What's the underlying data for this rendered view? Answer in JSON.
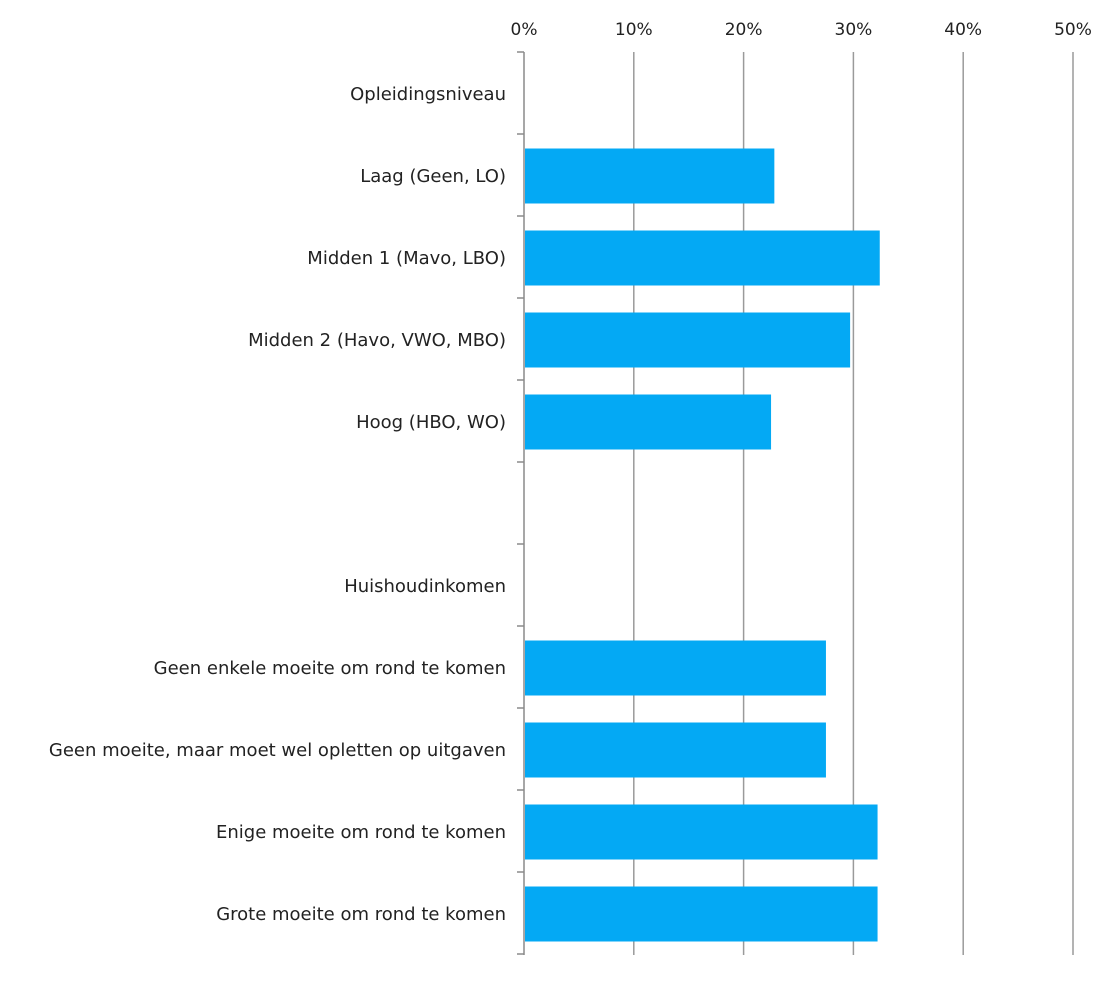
{
  "chart_data": {
    "type": "bar",
    "orientation": "horizontal",
    "title": "",
    "xlabel": "",
    "ylabel": "",
    "xlim": [
      0,
      50
    ],
    "x_ticks": [
      0,
      10,
      20,
      30,
      40,
      50
    ],
    "x_tick_labels": [
      "0%",
      "10%",
      "20%",
      "30%",
      "40%",
      "50%"
    ],
    "x_axis_position": "top",
    "grid": "vertical",
    "legend": "none",
    "bar_color": "#04a9f4",
    "categories": [
      "Opleidingsniveau",
      "Laag (Geen, LO)",
      "Midden 1 (Mavo, LBO)",
      "Midden 2 (Havo, VWO, MBO)",
      "Hoog (HBO, WO)",
      "",
      "Huishoudinkomen",
      "Geen enkele moeite om rond te komen",
      "Geen moeite, maar moet wel opletten op uitgaven",
      "Enige moeite om rond te komen",
      "Grote moeite om rond te komen"
    ],
    "values": [
      null,
      22.8,
      32.4,
      29.7,
      22.5,
      null,
      null,
      27.5,
      27.5,
      32.2,
      32.2
    ]
  }
}
